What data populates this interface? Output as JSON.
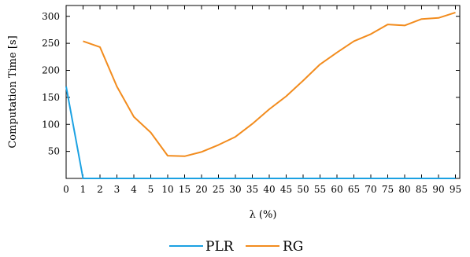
{
  "chart_data": {
    "type": "line",
    "title": "",
    "xlabel": "λ (%)",
    "ylabel": "Computation Time [s]",
    "x_tick_labels": [
      "0",
      "1",
      "2",
      "3",
      "4",
      "5",
      "10",
      "15",
      "20",
      "25",
      "30",
      "35",
      "40",
      "45",
      "50",
      "55",
      "60",
      "65",
      "70",
      "75",
      "80",
      "85",
      "90",
      "95"
    ],
    "y_ticks": [
      50,
      100,
      150,
      200,
      250,
      300
    ],
    "ylim": [
      0,
      320
    ],
    "legend_placement": "bottom-center",
    "grid": false,
    "series": [
      {
        "name": "PLR",
        "color": "#1ba1e2",
        "values": [
          170,
          0,
          0,
          0,
          0,
          0,
          0,
          0,
          0,
          0,
          0,
          0,
          0,
          0,
          0,
          0,
          0,
          0,
          0,
          0,
          0,
          0,
          0,
          0
        ]
      },
      {
        "name": "RG",
        "color": "#f28c1e",
        "values": [
          null,
          254,
          243,
          170,
          114,
          85,
          42,
          41,
          49,
          62,
          77,
          101,
          128,
          152,
          181,
          211,
          233,
          254,
          267,
          285,
          283,
          295,
          297,
          307
        ]
      }
    ]
  }
}
